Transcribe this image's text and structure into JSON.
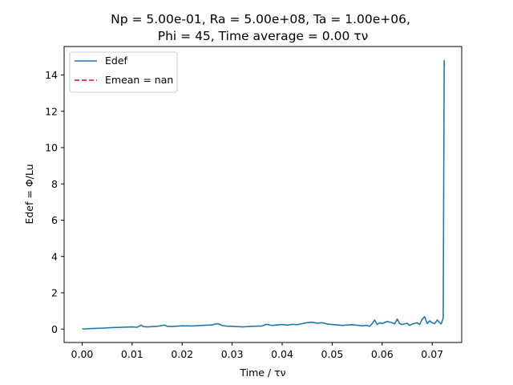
{
  "chart_data": {
    "type": "line",
    "title_line1": "Np = 5.00e-01, Ra = 5.00e+08, Ta = 1.00e+06,",
    "title_line2": "Phi = 45, Time average = 0.00 τν",
    "xlabel": "Time / τν",
    "ylabel": "Edef = Φ/Lu",
    "xlim": [
      -0.0036,
      0.0759
    ],
    "ylim": [
      -0.74,
      15.57
    ],
    "xticks": [
      0.0,
      0.01,
      0.02,
      0.03,
      0.04,
      0.05,
      0.06,
      0.07
    ],
    "xtick_labels": [
      "0.00",
      "0.01",
      "0.02",
      "0.03",
      "0.04",
      "0.05",
      "0.06",
      "0.07"
    ],
    "yticks": [
      0,
      2,
      4,
      6,
      8,
      10,
      12,
      14
    ],
    "ytick_labels": [
      "0",
      "2",
      "4",
      "6",
      "8",
      "10",
      "12",
      "14"
    ],
    "grid": false,
    "legend_position": "top-left",
    "series": [
      {
        "name": "Edef",
        "color": "#1f77b4",
        "style": "solid",
        "x": [
          0.0,
          0.002,
          0.004,
          0.006,
          0.008,
          0.01,
          0.011,
          0.0118,
          0.0122,
          0.013,
          0.015,
          0.0165,
          0.017,
          0.018,
          0.02,
          0.022,
          0.024,
          0.026,
          0.0272,
          0.028,
          0.029,
          0.03,
          0.032,
          0.034,
          0.036,
          0.0368,
          0.038,
          0.04,
          0.041,
          0.042,
          0.043,
          0.044,
          0.045,
          0.046,
          0.047,
          0.048,
          0.049,
          0.05,
          0.052,
          0.054,
          0.056,
          0.057,
          0.0575,
          0.058,
          0.0585,
          0.059,
          0.0595,
          0.06,
          0.061,
          0.062,
          0.0625,
          0.063,
          0.0635,
          0.064,
          0.065,
          0.0655,
          0.066,
          0.067,
          0.0675,
          0.068,
          0.0685,
          0.069,
          0.0695,
          0.07,
          0.0705,
          0.071,
          0.0715,
          0.0718,
          0.0722,
          0.0724,
          0.07245
        ],
        "values": [
          0.0,
          0.03,
          0.05,
          0.08,
          0.1,
          0.12,
          0.1,
          0.22,
          0.14,
          0.12,
          0.15,
          0.22,
          0.15,
          0.14,
          0.18,
          0.17,
          0.2,
          0.23,
          0.3,
          0.2,
          0.16,
          0.15,
          0.12,
          0.15,
          0.17,
          0.26,
          0.2,
          0.25,
          0.22,
          0.26,
          0.24,
          0.3,
          0.35,
          0.38,
          0.32,
          0.35,
          0.28,
          0.25,
          0.2,
          0.24,
          0.18,
          0.2,
          0.15,
          0.3,
          0.5,
          0.25,
          0.35,
          0.3,
          0.42,
          0.35,
          0.28,
          0.55,
          0.3,
          0.25,
          0.32,
          0.2,
          0.28,
          0.35,
          0.25,
          0.55,
          0.68,
          0.3,
          0.45,
          0.35,
          0.3,
          0.5,
          0.35,
          0.28,
          0.6,
          14.8,
          14.5
        ]
      },
      {
        "name": "Emean = nan",
        "color": "#ff0000",
        "style": "dashed",
        "x": [],
        "values": []
      }
    ]
  }
}
